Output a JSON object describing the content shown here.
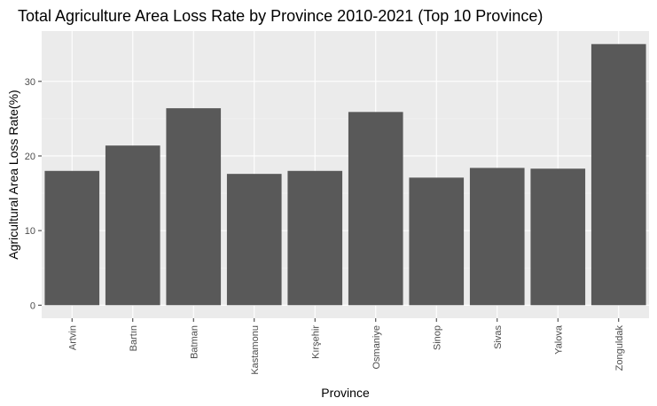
{
  "chart_data": {
    "type": "bar",
    "title": "Total Agriculture Area Loss Rate by Province 2010-2021 (Top 10 Province)",
    "xlabel": "Province",
    "ylabel": "Agricultural Area Loss Rate(%)",
    "categories": [
      "Artvin",
      "Bartın",
      "Batman",
      "Kastamonu",
      "Kırşehir",
      "Osmaniye",
      "Sinop",
      "Sivas",
      "Yalova",
      "Zonguldak"
    ],
    "values": [
      18.0,
      21.4,
      26.4,
      17.6,
      18.0,
      25.9,
      17.1,
      18.4,
      18.3,
      35.0
    ],
    "ylim": [
      -1.75,
      36.75
    ],
    "yticks": [
      0,
      10,
      20,
      30
    ],
    "grid": true,
    "colors": {
      "bar": "#595959",
      "panel": "#ebebeb",
      "grid_major": "#ffffff",
      "grid_minor": "#f5f5f5",
      "tick": "#333333"
    }
  }
}
